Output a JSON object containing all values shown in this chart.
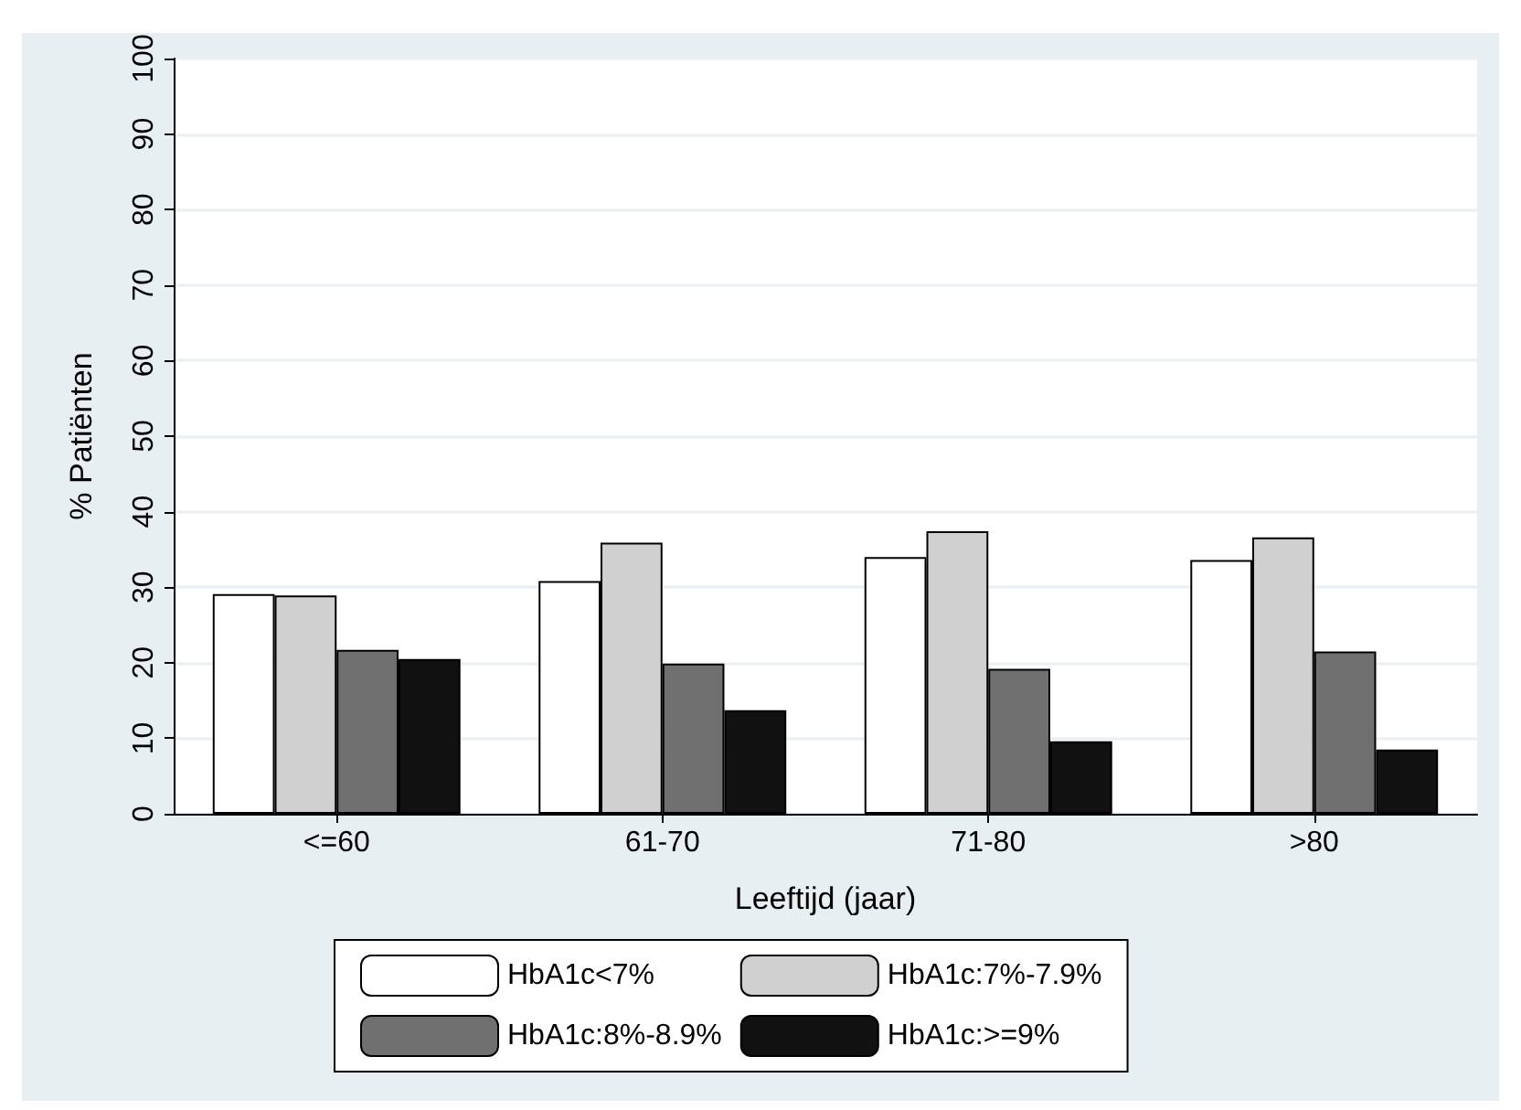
{
  "chart_data": {
    "type": "bar",
    "xlabel": "Leeftijd (jaar)",
    "ylabel": "% Patiënten",
    "categories": [
      "<=60",
      "61-70",
      "71-80",
      ">80"
    ],
    "series": [
      {
        "name": "HbA1c<7%",
        "color": "#ffffff",
        "values": [
          29.1,
          30.8,
          34.0,
          33.6
        ]
      },
      {
        "name": "HbA1c:7%-7.9%",
        "color": "#d0d0d0",
        "values": [
          28.9,
          35.9,
          37.4,
          36.6
        ]
      },
      {
        "name": "HbA1c:8%-8.9%",
        "color": "#707070",
        "values": [
          21.7,
          19.9,
          19.2,
          21.5
        ]
      },
      {
        "name": "HbA1c:>=9%",
        "color": "#111111",
        "values": [
          20.5,
          13.7,
          9.6,
          8.5
        ]
      }
    ],
    "ylim": [
      0,
      100
    ],
    "yticks": [
      0,
      10,
      20,
      30,
      40,
      50,
      60,
      70,
      80,
      90,
      100
    ],
    "grid": "y",
    "legend": "bottom"
  }
}
